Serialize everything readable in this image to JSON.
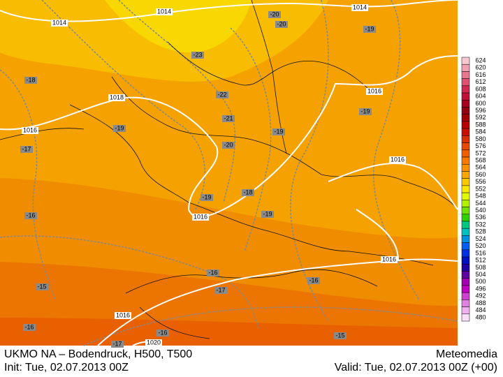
{
  "map": {
    "isobar_labels": [
      "1014",
      "1014",
      "1014",
      "1016",
      "1016",
      "1016",
      "1016",
      "1016",
      "1016",
      "1018",
      "1020"
    ],
    "temperature_labels": [
      "-20",
      "-20",
      "-19",
      "-19",
      "-19",
      "-19",
      "-19",
      "-19",
      "-18",
      "-18",
      "-23",
      "-22",
      "-21",
      "-20",
      "-17",
      "-16",
      "-16",
      "-16",
      "-16",
      "-16",
      "-17",
      "-15",
      "-15",
      "-17"
    ]
  },
  "legend": [
    {
      "label": "624",
      "color": "#f8c8d0"
    },
    {
      "label": "620",
      "color": "#f0a0b0"
    },
    {
      "label": "616",
      "color": "#e87890"
    },
    {
      "label": "612",
      "color": "#e05070"
    },
    {
      "label": "608",
      "color": "#d02850"
    },
    {
      "label": "604",
      "color": "#c01038"
    },
    {
      "label": "600",
      "color": "#a80020"
    },
    {
      "label": "596",
      "color": "#900010"
    },
    {
      "label": "592",
      "color": "#a00000"
    },
    {
      "label": "588",
      "color": "#b80000"
    },
    {
      "label": "584",
      "color": "#c81000"
    },
    {
      "label": "580",
      "color": "#d83000"
    },
    {
      "label": "576",
      "color": "#e84800"
    },
    {
      "label": "572",
      "color": "#f06000"
    },
    {
      "label": "568",
      "color": "#f87800"
    },
    {
      "label": "564",
      "color": "#f89000"
    },
    {
      "label": "560",
      "color": "#f8a800"
    },
    {
      "label": "556",
      "color": "#f8c800"
    },
    {
      "label": "552",
      "color": "#f8e800"
    },
    {
      "label": "548",
      "color": "#e0f800"
    },
    {
      "label": "544",
      "color": "#b0f000"
    },
    {
      "label": "540",
      "color": "#70e000"
    },
    {
      "label": "536",
      "color": "#30d000"
    },
    {
      "label": "532",
      "color": "#00c880"
    },
    {
      "label": "528",
      "color": "#00c0c0"
    },
    {
      "label": "524",
      "color": "#0090e0"
    },
    {
      "label": "520",
      "color": "#0060f0"
    },
    {
      "label": "516",
      "color": "#0030e0"
    },
    {
      "label": "512",
      "color": "#0010c0"
    },
    {
      "label": "508",
      "color": "#2000a0"
    },
    {
      "label": "504",
      "color": "#6000a0"
    },
    {
      "label": "500",
      "color": "#a000b0"
    },
    {
      "label": "496",
      "color": "#c000c0"
    },
    {
      "label": "492",
      "color": "#d040d0"
    },
    {
      "label": "488",
      "color": "#e080e0"
    },
    {
      "label": "484",
      "color": "#f0b0f0"
    },
    {
      "label": "480",
      "color": "#f8e0f8"
    }
  ],
  "footer": {
    "title": "UKMO NA – Bodendruck, H500, T500",
    "brand": "Meteomedia",
    "init": "Init: Tue, 02.07.2013 00Z",
    "valid": "Valid: Tue, 02.07.2013 00Z (+00)"
  }
}
